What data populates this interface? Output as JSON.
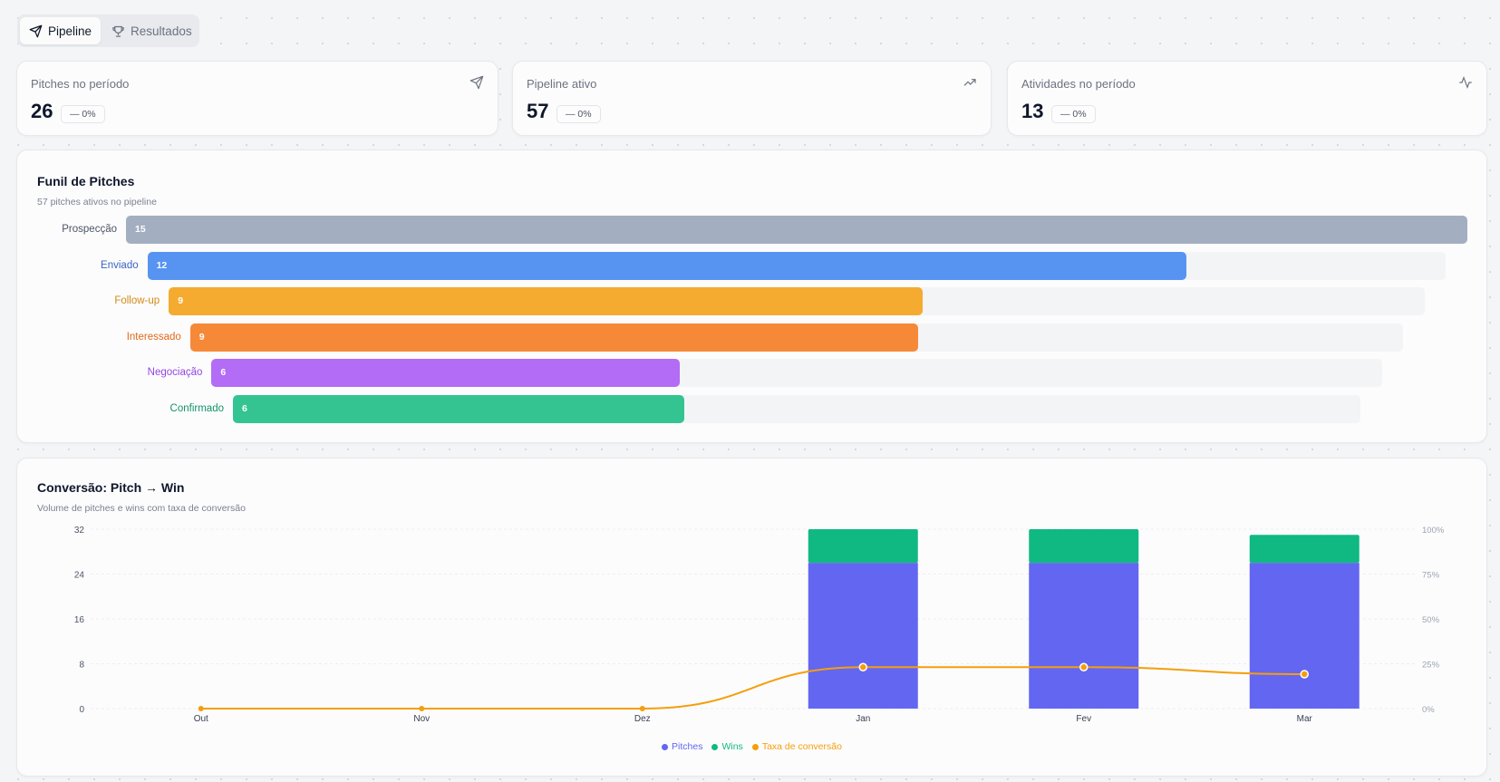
{
  "tabs": [
    {
      "label": "Pipeline",
      "icon": "send-icon",
      "active": true
    },
    {
      "label": "Resultados",
      "icon": "trophy-icon",
      "active": false
    }
  ],
  "stats": [
    {
      "label": "Pitches no período",
      "value": "26",
      "change": "— 0%",
      "icon": "send-icon"
    },
    {
      "label": "Pipeline ativo",
      "value": "57",
      "change": "— 0%",
      "icon": "trending-up-icon"
    },
    {
      "label": "Atividades no período",
      "value": "13",
      "change": "— 0%",
      "icon": "activity-icon"
    }
  ],
  "funnel": {
    "title": "Funil de Pitches",
    "subtitle": "57 pitches ativos no pipeline",
    "stages": [
      {
        "label": "Prospecção",
        "value": 15,
        "color": "#a3afc0",
        "label_color": "#4b5563"
      },
      {
        "label": "Enviado",
        "value": 12,
        "color": "#5794f2",
        "label_color": "#3b63c4"
      },
      {
        "label": "Follow-up",
        "value": 9,
        "color": "#f4ab2f",
        "label_color": "#d58a12"
      },
      {
        "label": "Interessado",
        "value": 9,
        "color": "#f68938",
        "label_color": "#e06a1b"
      },
      {
        "label": "Negociação",
        "value": 6,
        "color": "#b36cf5",
        "label_color": "#9446e0"
      },
      {
        "label": "Confirmado",
        "value": 6,
        "color": "#33c492",
        "label_color": "#15936a"
      }
    ]
  },
  "conversion": {
    "title": "Conversão: Pitch → Win",
    "subtitle": "Volume de pitches e wins com taxa de conversão"
  },
  "chart_data": {
    "type": "bar",
    "stacked": true,
    "categories": [
      "Out",
      "Nov",
      "Dez",
      "Jan",
      "Fev",
      "Mar"
    ],
    "series": [
      {
        "name": "Pitches",
        "type": "bar",
        "axis": "left",
        "color": "#6366f1",
        "values": [
          0,
          0,
          0,
          26,
          26,
          26
        ]
      },
      {
        "name": "Wins",
        "type": "bar",
        "axis": "left",
        "color": "#10b981",
        "values": [
          0,
          0,
          0,
          6,
          6,
          5
        ]
      },
      {
        "name": "Taxa de conversão",
        "type": "line",
        "axis": "right",
        "color": "#f59e0b",
        "values": [
          0,
          0,
          0,
          23.1,
          23.1,
          19.2
        ]
      }
    ],
    "y_left": {
      "ticks": [
        "0",
        "8",
        "16",
        "24",
        "32"
      ],
      "range": [
        0,
        32
      ]
    },
    "y_right": {
      "ticks": [
        "0%",
        "25%",
        "50%",
        "75%",
        "100%"
      ],
      "range": [
        0,
        100
      ]
    },
    "grid": true,
    "legend": "bottom-center"
  }
}
